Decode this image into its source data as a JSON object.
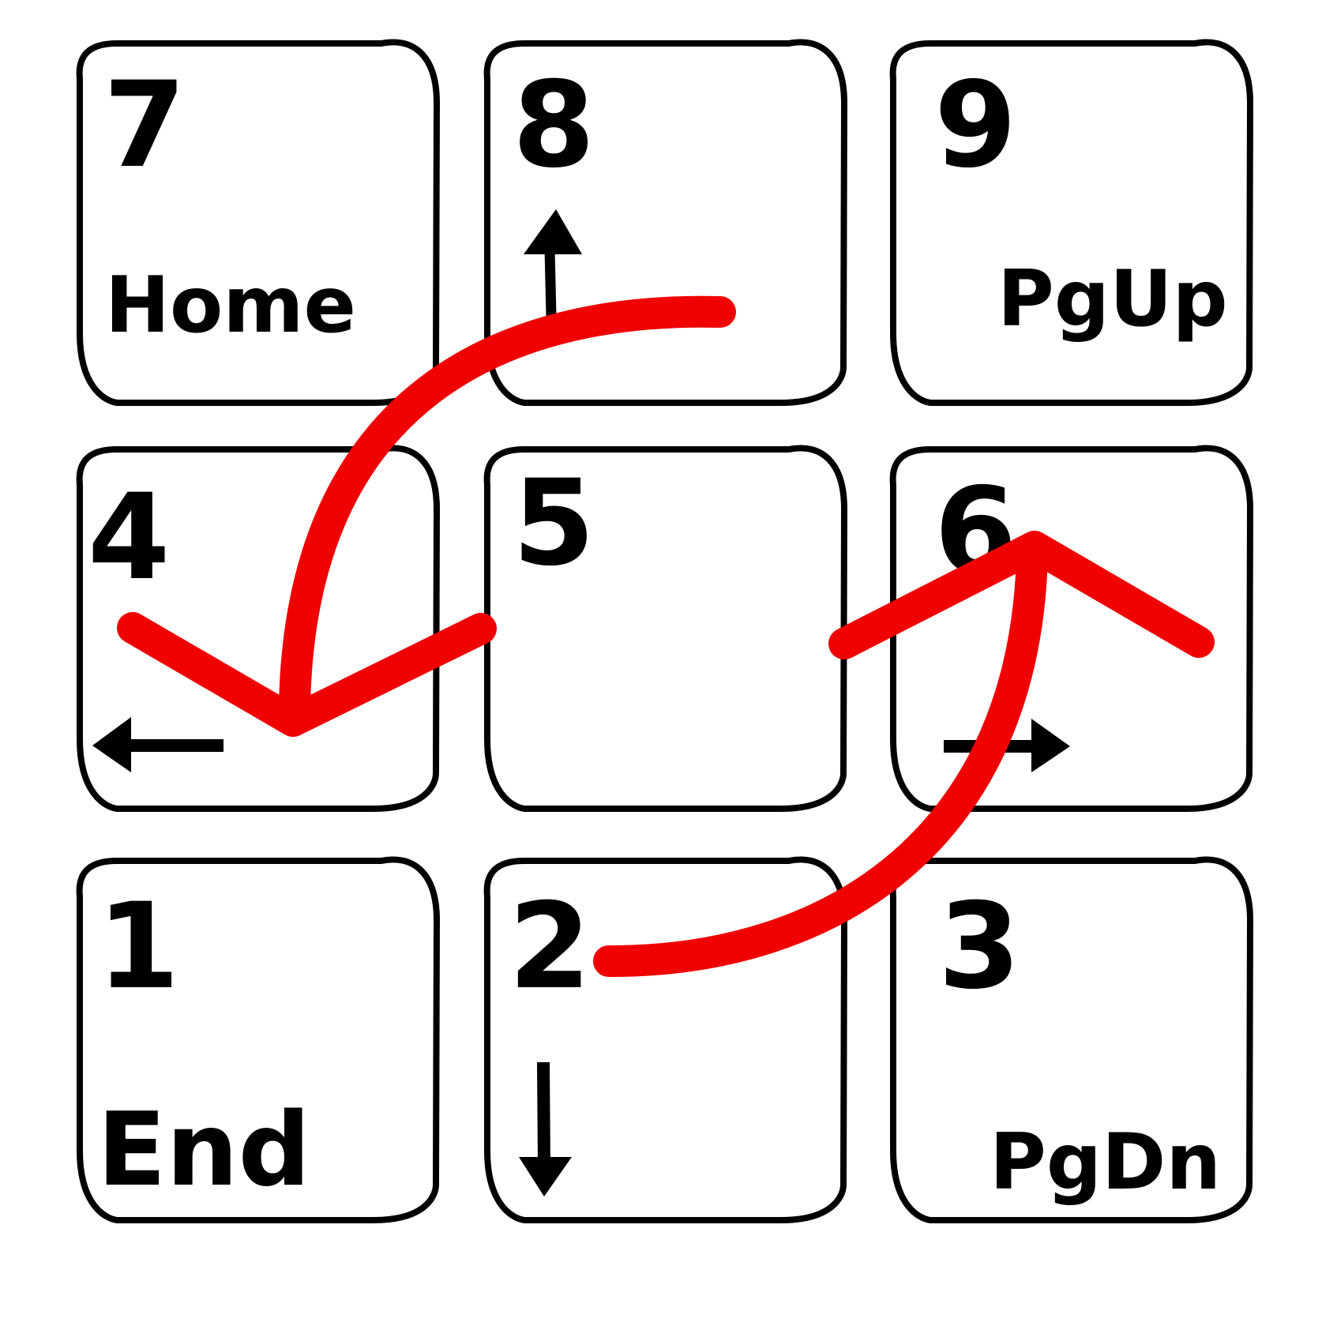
{
  "keypad": {
    "keys": [
      {
        "number": "7",
        "label": "Home",
        "arrow": ""
      },
      {
        "number": "8",
        "label": "",
        "arrow": "up"
      },
      {
        "number": "9",
        "label": "PgUp",
        "arrow": ""
      },
      {
        "number": "4",
        "label": "",
        "arrow": "left"
      },
      {
        "number": "5",
        "label": "",
        "arrow": ""
      },
      {
        "number": "6",
        "label": "",
        "arrow": "right"
      },
      {
        "number": "1",
        "label": "End",
        "arrow": ""
      },
      {
        "number": "2",
        "label": "",
        "arrow": "down"
      },
      {
        "number": "3",
        "label": "PgDn",
        "arrow": ""
      }
    ]
  },
  "gesture_strokes": {
    "color": "#f00000",
    "strokes": [
      {
        "name": "curve-8-to-4",
        "from_key": "8",
        "to_key": "4",
        "arrowhead": "down"
      },
      {
        "name": "curve-2-to-6",
        "from_key": "2",
        "to_key": "6",
        "arrowhead": "up"
      }
    ]
  },
  "colors": {
    "outline": "#000000",
    "background": "#ffffff"
  }
}
